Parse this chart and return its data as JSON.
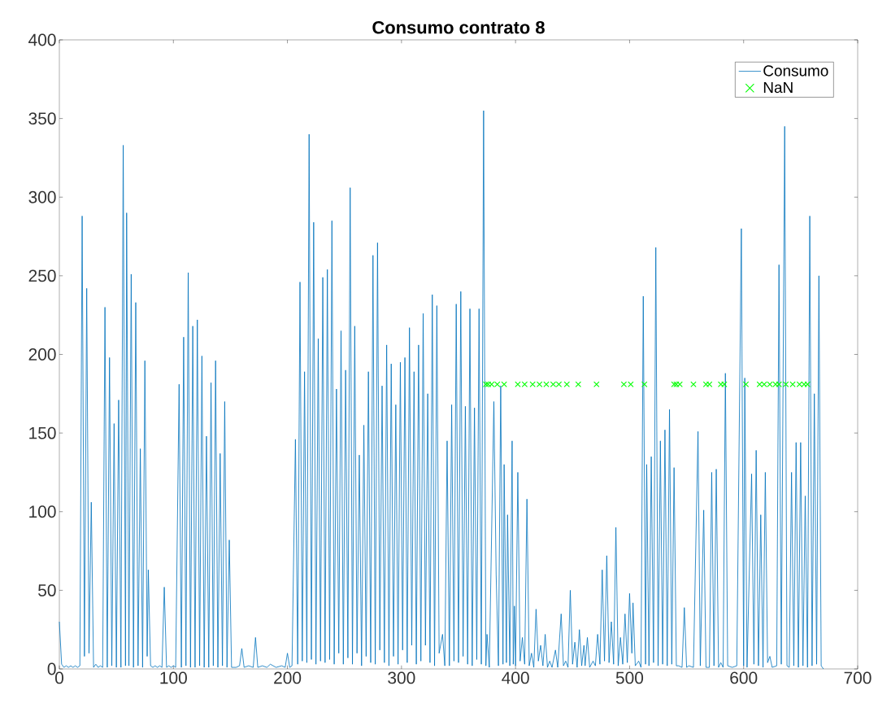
{
  "chart_data": {
    "type": "line",
    "title": "Consumo contrato 8",
    "xlim": [
      0,
      700
    ],
    "xticks": [
      0,
      100,
      200,
      300,
      400,
      500,
      600,
      700
    ],
    "ylim": [
      0,
      400
    ],
    "yticks": [
      0,
      50,
      100,
      150,
      200,
      250,
      300,
      350,
      400
    ],
    "grid": false,
    "legend": "top right",
    "series": [
      {
        "name": "Consumo",
        "color": "#0072bd",
        "x": [
          0,
          2,
          4,
          6,
          8,
          10,
          12,
          14,
          16,
          18,
          20,
          22,
          24,
          26,
          28,
          30,
          32,
          34,
          36,
          38,
          40,
          42,
          44,
          46,
          48,
          50,
          52,
          54,
          56,
          58,
          59,
          61,
          63,
          65,
          67,
          69,
          71,
          73,
          75,
          77,
          78,
          80,
          82,
          84,
          86,
          88,
          90,
          92,
          94,
          96,
          98,
          100,
          102,
          105,
          107,
          109,
          111,
          113,
          115,
          117,
          119,
          121,
          123,
          125,
          127,
          129,
          131,
          133,
          135,
          137,
          139,
          141,
          143,
          145,
          147,
          149,
          151,
          155,
          158,
          160,
          162,
          166,
          170,
          172,
          174,
          178,
          182,
          185,
          190,
          195,
          198,
          200,
          202,
          204,
          207,
          209,
          211,
          213,
          215,
          217,
          219,
          221,
          223,
          225,
          227,
          229,
          231,
          233,
          235,
          237,
          239,
          241,
          243,
          245,
          247,
          249,
          251,
          253,
          255,
          257,
          259,
          261,
          263,
          265,
          267,
          269,
          271,
          273,
          275,
          277,
          279,
          281,
          283,
          285,
          287,
          289,
          291,
          293,
          295,
          297,
          299,
          301,
          303,
          305,
          307,
          309,
          311,
          313,
          315,
          317,
          319,
          321,
          323,
          325,
          327,
          329,
          331,
          333,
          336,
          338,
          340,
          342,
          344,
          346,
          348,
          350,
          352,
          354,
          356,
          358,
          360,
          362,
          364,
          366,
          368,
          370,
          372,
          374,
          375,
          377,
          381,
          383,
          385,
          387,
          389,
          390,
          392,
          393,
          395,
          397,
          398,
          399,
          400,
          402,
          404,
          406,
          408,
          410,
          412,
          414,
          416,
          418,
          420,
          422,
          424,
          426,
          428,
          430,
          432,
          435,
          437,
          440,
          442,
          444,
          446,
          448,
          450,
          452,
          454,
          456,
          458,
          460,
          461,
          463,
          465,
          468,
          470,
          472,
          474,
          476,
          478,
          480,
          482,
          484,
          486,
          488,
          490,
          492,
          494,
          496,
          498,
          500,
          502,
          503,
          505,
          508,
          510,
          512,
          514,
          515,
          517,
          519,
          521,
          523,
          525,
          527,
          529,
          531,
          533,
          535,
          537,
          539,
          541,
          543,
          546,
          548,
          550,
          552,
          556,
          560,
          562,
          565,
          567,
          570,
          572,
          574,
          576,
          578,
          580,
          582,
          584,
          586,
          590,
          594,
          598,
          600,
          601,
          603,
          607,
          609,
          611,
          613,
          615,
          617,
          619,
          621,
          623,
          625,
          629,
          631,
          633,
          636,
          638,
          640,
          642,
          644,
          646,
          648,
          650,
          652,
          654,
          656,
          658,
          660,
          662,
          664,
          666,
          668,
          670
        ],
        "values": [
          30,
          3,
          1,
          2,
          1,
          2,
          1,
          2,
          1,
          2,
          288,
          8,
          242,
          10,
          106,
          1,
          3,
          1,
          2,
          1,
          230,
          1,
          198,
          2,
          156,
          1,
          171,
          1,
          333,
          2,
          290,
          2,
          251,
          1,
          233,
          2,
          140,
          1,
          196,
          8,
          63,
          2,
          1,
          2,
          1,
          2,
          1,
          52,
          1,
          2,
          1,
          2,
          1,
          181,
          1,
          211,
          2,
          252,
          1,
          218,
          1,
          222,
          2,
          199,
          1,
          148,
          1,
          182,
          2,
          196,
          1,
          137,
          2,
          170,
          1,
          82,
          1,
          1,
          2,
          13,
          1,
          2,
          1,
          20,
          1,
          2,
          1,
          3,
          1,
          2,
          1,
          10,
          1,
          2,
          146,
          3,
          246,
          5,
          189,
          4,
          340,
          6,
          284,
          3,
          210,
          5,
          249,
          4,
          254,
          6,
          285,
          3,
          178,
          10,
          215,
          3,
          190,
          7,
          306,
          3,
          218,
          10,
          136,
          2,
          155,
          8,
          189,
          4,
          263,
          3,
          271,
          12,
          180,
          4,
          206,
          2,
          194,
          8,
          168,
          3,
          195,
          12,
          198,
          4,
          217,
          15,
          189,
          3,
          206,
          5,
          226,
          15,
          175,
          4,
          238,
          2,
          231,
          10,
          22,
          2,
          145,
          2,
          168,
          5,
          232,
          4,
          240,
          8,
          167,
          3,
          229,
          2,
          166,
          6,
          229,
          3,
          355,
          2,
          22,
          1,
          170,
          60,
          2,
          180,
          3,
          130,
          4,
          98,
          2,
          145,
          3,
          40,
          2,
          125,
          5,
          20,
          3,
          108,
          2,
          10,
          1,
          38,
          5,
          15,
          2,
          22,
          1,
          5,
          1,
          12,
          1,
          35,
          2,
          5,
          1,
          50,
          3,
          17,
          1,
          25,
          2,
          15,
          2,
          20,
          1,
          5,
          2,
          22,
          3,
          63,
          5,
          72,
          4,
          30,
          3,
          90,
          2,
          20,
          3,
          35,
          4,
          48,
          10,
          42,
          2,
          5,
          1,
          237,
          3,
          130,
          2,
          135,
          4,
          268,
          2,
          145,
          3,
          152,
          2,
          165,
          3,
          128,
          2,
          2,
          1,
          39,
          1,
          2,
          1,
          151,
          2,
          101,
          1,
          1,
          125,
          2,
          127,
          1,
          4,
          1,
          188,
          2,
          1,
          2,
          280,
          2,
          185,
          1,
          124,
          3,
          139,
          2,
          98,
          1,
          125,
          4,
          8,
          1,
          2,
          257,
          3,
          345,
          2,
          1,
          125,
          2,
          144,
          1,
          144,
          2,
          110,
          1,
          288,
          2,
          175,
          3,
          250,
          2,
          0
        ]
      },
      {
        "name": "NaN",
        "type": "scatter",
        "marker": "cross",
        "color": "#00ff00",
        "x": [
          374,
          376,
          379,
          384,
          390,
          402,
          408,
          415,
          421,
          427,
          433,
          438,
          445,
          455,
          471,
          495,
          501,
          513,
          539,
          541,
          544,
          556,
          567,
          570,
          580,
          583,
          602,
          614,
          618,
          623,
          628,
          631,
          637,
          643,
          649,
          653,
          656
        ],
        "values": [
          181,
          181,
          181,
          181,
          181,
          181,
          181,
          181,
          181,
          181,
          181,
          181,
          181,
          181,
          181,
          181,
          181,
          181,
          181,
          181,
          181,
          181,
          181,
          181,
          181,
          181,
          181,
          181,
          181,
          181,
          181,
          181,
          181,
          181,
          181,
          181,
          181
        ]
      }
    ]
  }
}
